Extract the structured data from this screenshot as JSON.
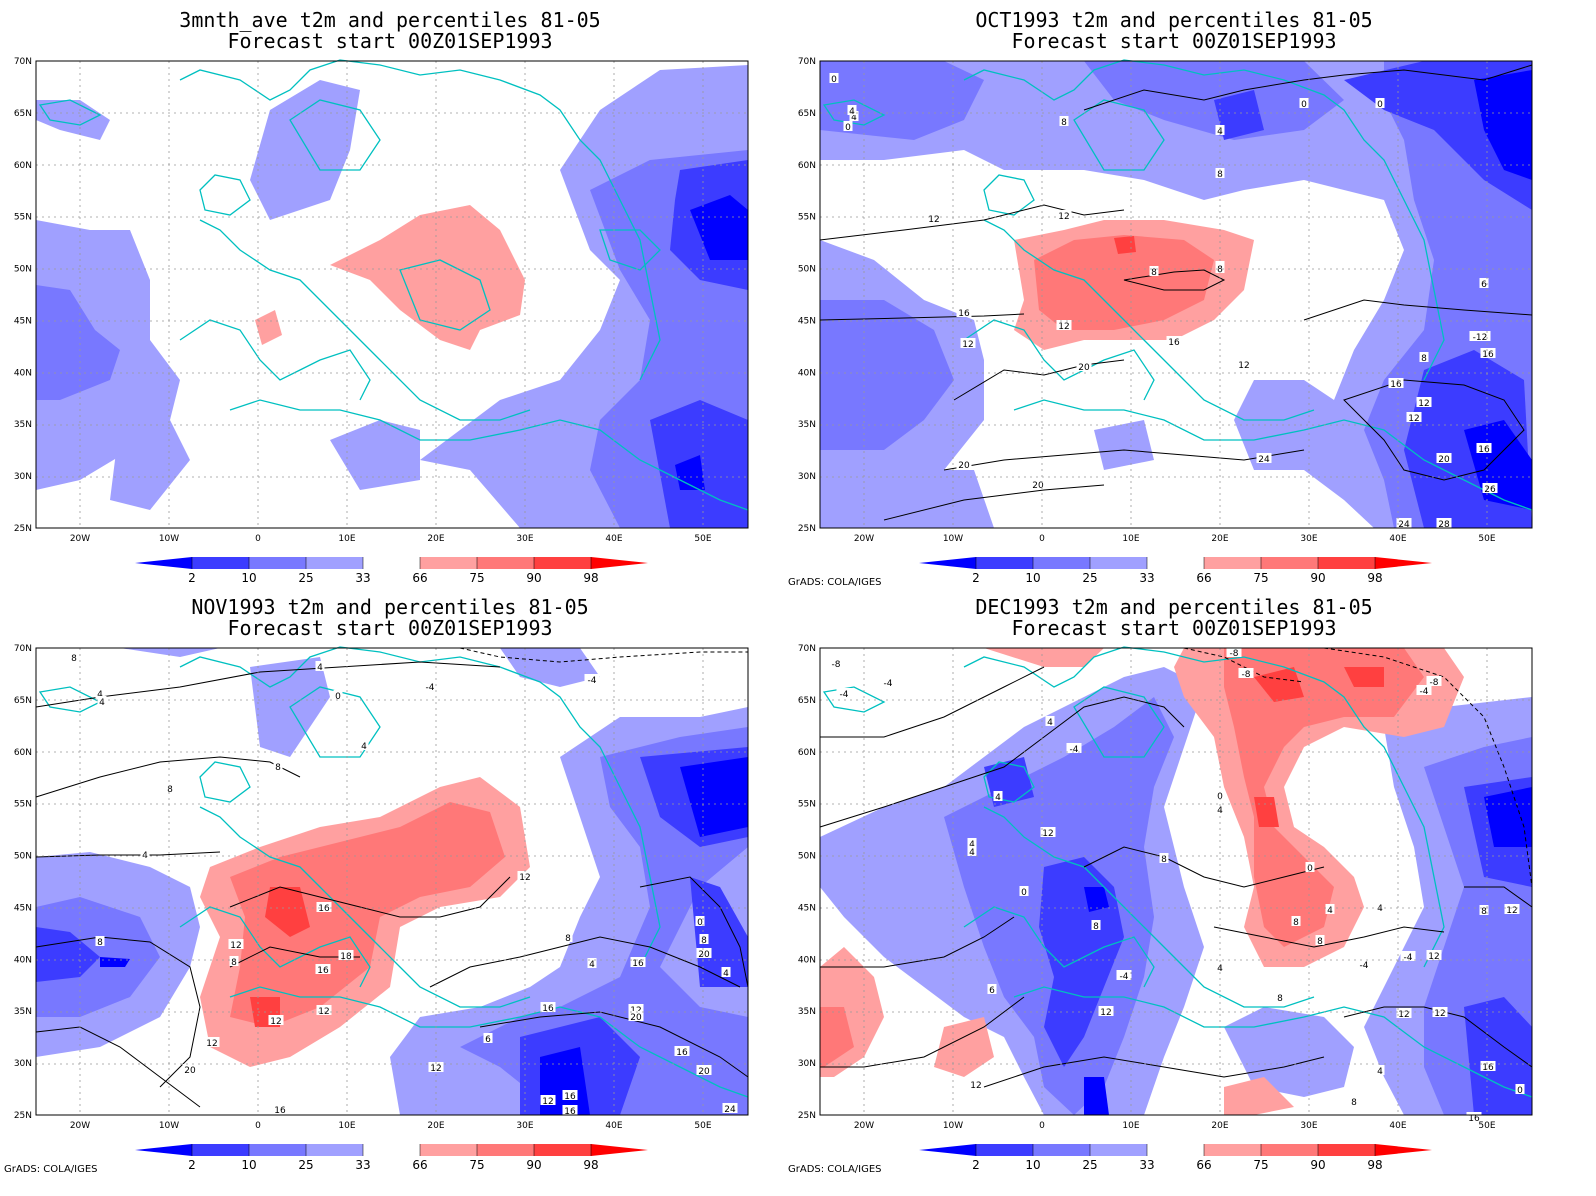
{
  "panels": [
    {
      "id": "p1",
      "title_line1": "3mnth_ave t2m and percentiles 81-05",
      "title_line2": "Forecast start 00Z01SEP1993",
      "credit": "",
      "contour_labels": []
    },
    {
      "id": "p2",
      "title_line1": "OCT1993 t2m and percentiles 81-05",
      "title_line2": "Forecast start 00Z01SEP1993",
      "credit": "GrADS: COLA/IGES",
      "contour_labels": [
        "0",
        "4",
        "0",
        "4",
        "8",
        "0",
        "4",
        "8",
        "0",
        "12",
        "12",
        "8",
        "8",
        "8",
        "6",
        "16",
        "12",
        "12",
        "-12",
        "8",
        "16",
        "12",
        "16",
        "20",
        "16",
        "12",
        "12",
        "16",
        "20",
        "24",
        "20",
        "20",
        "26",
        "24",
        "28"
      ]
    },
    {
      "id": "p3",
      "title_line1": "NOV1993 t2m and percentiles 81-05",
      "title_line2": "Forecast start 00Z01SEP1993",
      "credit": "GrADS: COLA/IGES",
      "contour_labels": [
        "8",
        "4",
        "4",
        "-4",
        "-4",
        "4",
        "0",
        "4",
        "8",
        "8",
        "4",
        "12",
        "16",
        "8",
        "12",
        "8",
        "18",
        "16",
        "12",
        "4",
        "8",
        "12",
        "12",
        "16",
        "16",
        "0",
        "8",
        "12",
        "16",
        "6",
        "12",
        "12",
        "16",
        "20",
        "20",
        "16",
        "16",
        "20",
        "20",
        "24",
        "4"
      ]
    },
    {
      "id": "p4",
      "title_line1": "DEC1993 t2m and percentiles 81-05",
      "title_line2": "Forecast start 00Z01SEP1993",
      "credit": "GrADS: COLA/IGES",
      "contour_labels": [
        "-8",
        "-4",
        "-8",
        "-8",
        "-4",
        "-4",
        "-8",
        "4",
        "4",
        "-4",
        "0",
        "4",
        "4",
        "4",
        "0",
        "8",
        "12",
        "4",
        "8",
        "0",
        "4",
        "8",
        "-4",
        "12",
        "4",
        "8",
        "-4",
        "8",
        "-4",
        "12",
        "8",
        "6",
        "12",
        "12",
        "12",
        "12",
        "16",
        "0",
        "4",
        "8",
        "16",
        "20",
        "8",
        "20",
        "16",
        "12"
      ]
    }
  ],
  "map": {
    "lat_labels": [
      "70N",
      "65N",
      "60N",
      "55N",
      "50N",
      "45N",
      "40N",
      "35N",
      "30N",
      "25N"
    ],
    "lon_labels": [
      "20W",
      "10W",
      "0",
      "10E",
      "20E",
      "30E",
      "40E",
      "50E"
    ]
  },
  "colorbar": {
    "labels": [
      "2",
      "10",
      "25",
      "33",
      "66",
      "75",
      "90",
      "98"
    ],
    "colors_blue": [
      "#0000ff",
      "#3c3cff",
      "#7878ff",
      "#a0a0ff"
    ],
    "colors_red": [
      "#ffa0a0",
      "#ff7878",
      "#ff4040",
      "#ff0000"
    ]
  },
  "palette": {
    "coast": "#00c0c0",
    "grid": "#999999",
    "contour": "#000000"
  }
}
